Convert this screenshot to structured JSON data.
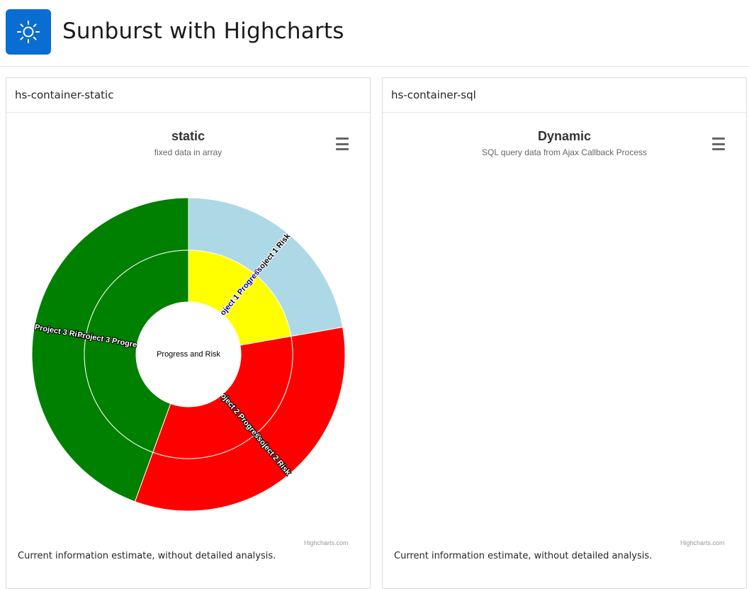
{
  "app": {
    "title": "Sunburst with Highcharts",
    "icon": "sun-icon",
    "accent_color": "#0a6dd1"
  },
  "regions": [
    {
      "heading": "hs-container-static",
      "chart_title": "static",
      "chart_subtitle": "fixed data in array",
      "menu_icon": "hamburger-menu-icon",
      "credits": "Highcharts.com",
      "caption": "Current information estimate, without detailed analysis."
    },
    {
      "heading": "hs-container-sql",
      "chart_title": "Dynamic",
      "chart_subtitle": "SQL query data from Ajax Callback Process",
      "menu_icon": "hamburger-menu-icon",
      "credits": "Highcharts.com",
      "caption": "Current information estimate, without detailed analysis."
    }
  ],
  "chart_data": [
    {
      "type": "sunburst",
      "title": "static",
      "subtitle": "fixed data in array",
      "root": "Progress and Risk",
      "inner_ring": [
        {
          "name": "Project 1 Progress",
          "value": 1,
          "color": "#ffff00",
          "label_color": "#000080"
        },
        {
          "name": "Project 2 Progress",
          "value": 1.5,
          "color": "#ff0000",
          "label_color": "#ffffff"
        },
        {
          "name": "Project 3 Progress",
          "value": 2,
          "color": "#008000",
          "label_color": "#ffffff"
        }
      ],
      "outer_ring": [
        {
          "name": "Project 1 Risk",
          "parent": "Project 1 Progress",
          "value": 1,
          "color": "#add8e6",
          "label_color": "#000000"
        },
        {
          "name": "Project 2 Risk",
          "parent": "Project 2 Progress",
          "value": 1.5,
          "color": "#ff0000",
          "label_color": "#ffffff"
        },
        {
          "name": "Project 3 Risk",
          "parent": "Project 3 Progress",
          "value": 2,
          "color": "#008000",
          "label_color": "#ffffff"
        }
      ]
    },
    {
      "type": "sunburst",
      "title": "Dynamic",
      "subtitle": "SQL query data from Ajax Callback Process",
      "inner_ring": [],
      "outer_ring": []
    }
  ]
}
